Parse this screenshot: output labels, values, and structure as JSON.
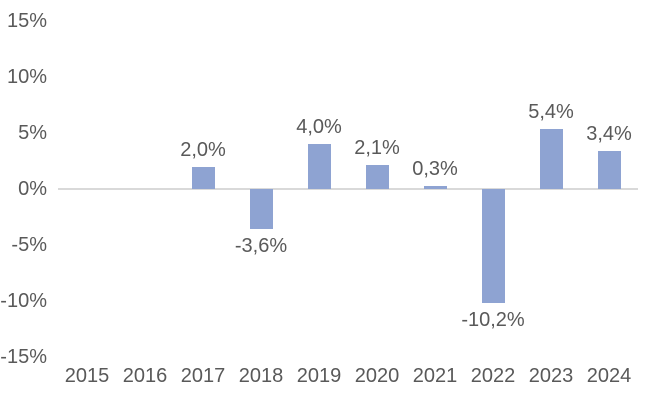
{
  "chart_data": {
    "type": "bar",
    "title": "",
    "xlabel": "",
    "ylabel": "",
    "categories": [
      "2015",
      "2016",
      "2017",
      "2018",
      "2019",
      "2020",
      "2021",
      "2022",
      "2023",
      "2024"
    ],
    "values": [
      null,
      null,
      2.0,
      -3.6,
      4.0,
      2.1,
      0.3,
      -10.2,
      5.4,
      3.4
    ],
    "data_labels": [
      "",
      "",
      "2,0%",
      "-3,6%",
      "4,0%",
      "2,1%",
      "0,3%",
      "-10,2%",
      "5,4%",
      "3,4%"
    ],
    "yticks": [
      "15%",
      "10%",
      "5%",
      "0%",
      "-5%",
      "-10%",
      "-15%"
    ],
    "ytick_values": [
      15,
      10,
      5,
      0,
      -5,
      -10,
      -15
    ],
    "ylim": [
      -15,
      15
    ],
    "grid": false,
    "legend": false,
    "bar_color": "#8EA3D2",
    "axis_line_color": "#D9D9D9",
    "text_color": "#595959"
  }
}
